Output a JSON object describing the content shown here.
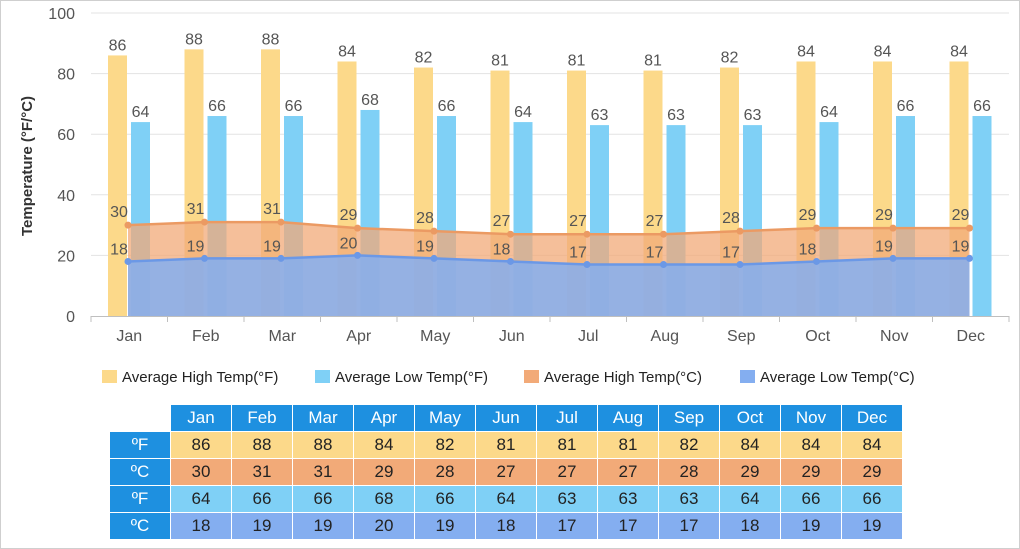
{
  "chart_data": {
    "type": "bar",
    "categories": [
      "Jan",
      "Feb",
      "Mar",
      "Apr",
      "May",
      "Jun",
      "Jul",
      "Aug",
      "Sep",
      "Oct",
      "Nov",
      "Dec"
    ],
    "ylabel": "Temperature (°F/°C)",
    "ylim": [
      0,
      100
    ],
    "yticks": [
      0,
      20,
      40,
      60,
      80,
      100
    ],
    "grid": true,
    "legend_position": "bottom",
    "series": [
      {
        "name": "Average High Temp(°F)",
        "kind": "bar",
        "color": "#fcd98a",
        "values": [
          86,
          88,
          88,
          84,
          82,
          81,
          81,
          81,
          82,
          84,
          84,
          84
        ]
      },
      {
        "name": "Average Low Temp(°F)",
        "kind": "bar",
        "color": "#7fd0f6",
        "values": [
          64,
          66,
          66,
          68,
          66,
          64,
          63,
          63,
          63,
          64,
          66,
          66
        ]
      },
      {
        "name": "Average High Temp(°C)",
        "kind": "area",
        "color": "#f2aa78",
        "values": [
          30,
          31,
          31,
          29,
          28,
          27,
          27,
          27,
          28,
          29,
          29,
          29
        ]
      },
      {
        "name": "Average Low Temp(°C)",
        "kind": "area",
        "color": "#84aef0",
        "values": [
          18,
          19,
          19,
          20,
          19,
          18,
          17,
          17,
          17,
          18,
          19,
          19
        ]
      }
    ]
  },
  "table": {
    "header": [
      "Jan",
      "Feb",
      "Mar",
      "Apr",
      "May",
      "Jun",
      "Jul",
      "Aug",
      "Sep",
      "Oct",
      "Nov",
      "Dec"
    ],
    "rows": [
      {
        "label": "ºF",
        "values": [
          "86",
          "88",
          "88",
          "84",
          "82",
          "81",
          "81",
          "81",
          "82",
          "84",
          "84",
          "84"
        ]
      },
      {
        "label": "ºC",
        "values": [
          "30",
          "31",
          "31",
          "29",
          "28",
          "27",
          "27",
          "27",
          "28",
          "29",
          "29",
          "29"
        ]
      },
      {
        "label": "ºF",
        "values": [
          "64",
          "66",
          "66",
          "68",
          "66",
          "64",
          "63",
          "63",
          "63",
          "64",
          "66",
          "66"
        ]
      },
      {
        "label": "ºC",
        "values": [
          "18",
          "19",
          "19",
          "20",
          "19",
          "18",
          "17",
          "17",
          "17",
          "18",
          "19",
          "19"
        ]
      }
    ]
  }
}
